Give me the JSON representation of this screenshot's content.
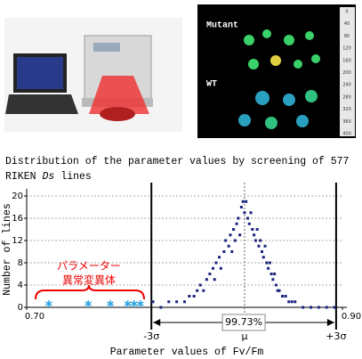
{
  "image_panel": {
    "labels": [
      "Mutant",
      "WT"
    ],
    "scale": [
      0,
      40,
      80,
      120,
      160,
      200,
      240,
      280,
      320,
      360,
      400
    ]
  },
  "chart_data": {
    "type": "scatter",
    "title_line1": "Distribution of the parameter values by screening of 577",
    "title_line2": [
      "RIKEN",
      "Ds",
      "lines"
    ],
    "x_label": "Parameter values of Fv/Fm",
    "y_label": "Number of lines",
    "xlim": [
      0.7,
      0.9
    ],
    "xticks": [
      {
        "value": 0.7,
        "label": "0.70"
      },
      {
        "value": 0.9,
        "label": "0.90"
      }
    ],
    "ylim": [
      0,
      20
    ],
    "yticks": [
      0,
      4,
      8,
      12,
      16,
      20
    ],
    "grid": true,
    "series": [
      {
        "marker": "dot",
        "color": "#1a237e",
        "x": [
          0.78,
          0.785,
          0.79,
          0.795,
          0.8,
          0.803,
          0.806,
          0.808,
          0.81,
          0.812,
          0.814,
          0.816,
          0.818,
          0.819,
          0.82,
          0.822,
          0.823,
          0.825,
          0.826,
          0.828,
          0.829,
          0.83,
          0.831,
          0.832,
          0.833,
          0.834,
          0.835,
          0.836,
          0.837,
          0.838,
          0.839,
          0.84,
          0.841,
          0.842,
          0.843,
          0.844,
          0.845,
          0.846,
          0.847,
          0.848,
          0.849,
          0.85,
          0.851,
          0.852,
          0.853,
          0.854,
          0.855,
          0.856,
          0.857,
          0.858,
          0.859,
          0.86,
          0.862,
          0.864,
          0.866,
          0.868,
          0.87,
          0.875,
          0.88,
          0.885,
          0.89,
          0.895
        ],
        "values": [
          1,
          0,
          1,
          1,
          1,
          2,
          2,
          3,
          4,
          3,
          5,
          6,
          7,
          5,
          8,
          9,
          7,
          10,
          12,
          11,
          13,
          10,
          14,
          12,
          15,
          16,
          13,
          18,
          19,
          17,
          19,
          16,
          15,
          17,
          14,
          13,
          12,
          14,
          11,
          12,
          10,
          9,
          11,
          8,
          7,
          8,
          6,
          5,
          6,
          4,
          3,
          3,
          2,
          2,
          1,
          1,
          1,
          0,
          0,
          0,
          0,
          0
        ]
      },
      {
        "marker": "asterisk",
        "color": "#29a3e0",
        "x": [
          0.714,
          0.739,
          0.753,
          0.764,
          0.768,
          0.772
        ],
        "values": [
          0,
          0,
          0,
          0,
          0,
          0
        ]
      }
    ],
    "reference_lines": [
      {
        "value": 0.779,
        "label": "-3σ"
      },
      {
        "value": 0.838,
        "label": "μ"
      },
      {
        "value": 0.896,
        "label": "+3σ"
      }
    ],
    "interval_label": "99.73%",
    "bracket_label": [
      "パラメーター",
      "異常変異体"
    ]
  }
}
